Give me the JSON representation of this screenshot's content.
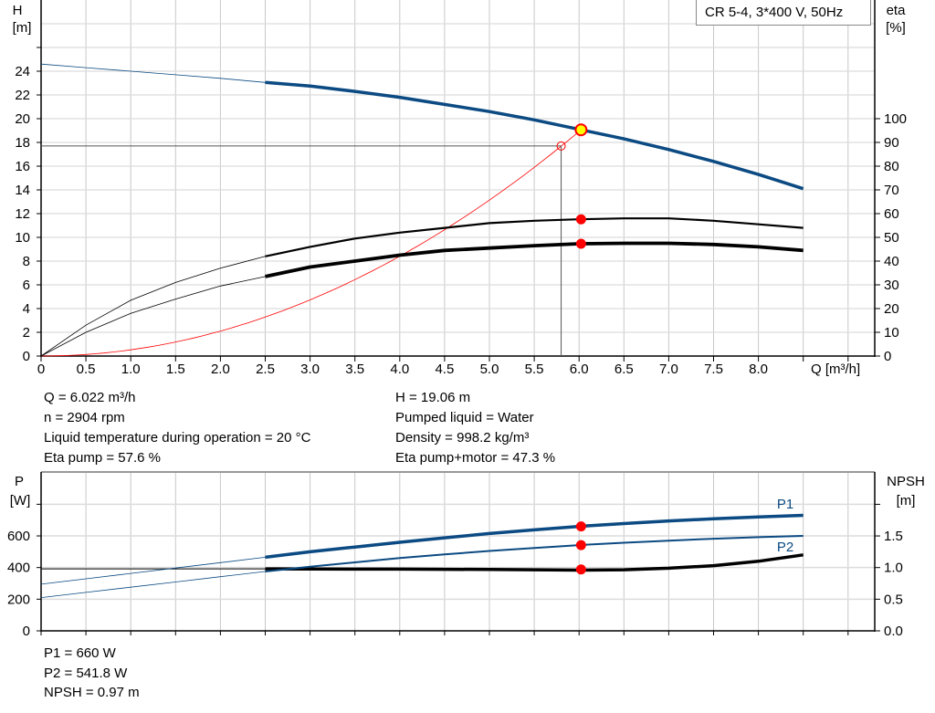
{
  "legend": "CR 5-4, 3*400 V, 50Hz",
  "colors": {
    "head": "#0b4a82",
    "efficiency": "#000000",
    "system": "#ff0000",
    "power": "#0b4a82",
    "npsh": "#000000",
    "marker": "#ff0000",
    "duty_point": "#ffff00",
    "grid": "#c8c8c8"
  },
  "info_top": {
    "left": [
      "Q = 6.022 m³/h",
      "n = 2904 rpm",
      "Liquid temperature during operation = 20 °C",
      "Eta pump = 57.6 %"
    ],
    "right": [
      "H = 19.06 m",
      "Pumped liquid = Water",
      "Density = 998.2 kg/m³",
      "Eta pump+motor = 47.3 %"
    ]
  },
  "info_bottom": [
    "P1 = 660 W",
    "P2 = 541.8 W",
    "NPSH = 0.97 m"
  ],
  "chart_data": [
    {
      "type": "line",
      "xlabel": "Q [m³/h]",
      "ylabel": "H\n[m]",
      "y2label": "eta\n[%]",
      "xlim": [
        0,
        9.3
      ],
      "ylim": [
        0,
        30
      ],
      "y2lim": [
        0,
        150
      ],
      "grid": true,
      "x_ticks": [
        "0",
        "0.5",
        "1.0",
        "1.5",
        "2.0",
        "2.5",
        "3.0",
        "3.5",
        "4.0",
        "4.5",
        "5.0",
        "5.5",
        "6.0",
        "6.5",
        "7.0",
        "7.5",
        "8.0"
      ],
      "y_ticks": [
        "0",
        "2",
        "4",
        "6",
        "8",
        "10",
        "12",
        "14",
        "16",
        "18",
        "20",
        "22",
        "24"
      ],
      "y2_ticks": [
        "0",
        "10",
        "20",
        "30",
        "40",
        "50",
        "60",
        "70",
        "80",
        "90",
        "100"
      ],
      "x": [
        0,
        0.5,
        1,
        1.5,
        2,
        2.5,
        3,
        3.5,
        4,
        4.5,
        5,
        5.5,
        6,
        6.5,
        7,
        7.5,
        8,
        8.5
      ],
      "series": [
        {
          "id": "head",
          "axis": "left",
          "values": [
            24.6,
            24.3,
            24.0,
            23.7,
            23.4,
            23.05,
            22.75,
            22.3,
            21.8,
            21.2,
            20.6,
            19.9,
            19.1,
            18.3,
            17.4,
            16.4,
            15.3,
            14.1
          ]
        },
        {
          "id": "eta_pump",
          "axis": "right",
          "values": [
            0,
            13,
            23.5,
            31,
            37,
            42,
            46,
            49.5,
            52,
            54,
            56,
            57,
            57.6,
            58,
            58,
            57,
            55.5,
            54
          ]
        },
        {
          "id": "eta_total",
          "axis": "right",
          "values": [
            0,
            10,
            18,
            24,
            29.5,
            33.5,
            37.5,
            40,
            42.5,
            44.5,
            45.5,
            46.5,
            47.3,
            47.5,
            47.5,
            47,
            46,
            44.5
          ]
        }
      ],
      "operating_range_start": 2.5,
      "system_curve": {
        "coefficient": 0.5256,
        "q_max": 6.022
      },
      "requested_point": {
        "q": 5.8,
        "h": 17.7
      },
      "duty_point": {
        "q": 6.022,
        "h": 19.06,
        "eta_pump": 57.6,
        "eta_total": 47.3
      }
    },
    {
      "type": "line",
      "ylabel": "P\n[W]",
      "y2label": "NPSH\n[m]",
      "xlim": [
        0,
        9.3
      ],
      "ylim": [
        0,
        1000
      ],
      "y2lim": [
        0,
        2.5
      ],
      "grid": true,
      "y_ticks": [
        "0",
        "200",
        "400",
        "600"
      ],
      "y2_ticks": [
        "0.0",
        "0.5",
        "1.0",
        "1.5"
      ],
      "x": [
        0,
        0.5,
        1,
        1.5,
        2,
        2.5,
        3,
        3.5,
        4,
        4.5,
        5,
        5.5,
        6,
        6.5,
        7,
        7.5,
        8,
        8.5
      ],
      "series": [
        {
          "id": "p1",
          "name": "P1",
          "axis": "left",
          "values": [
            295,
            329,
            363,
            397,
            431,
            465,
            500,
            530,
            560,
            588,
            615,
            638,
            660,
            678,
            695,
            708,
            720,
            730
          ]
        },
        {
          "id": "p2",
          "name": "P2",
          "axis": "left",
          "values": [
            210,
            243,
            276,
            309,
            342,
            375,
            405,
            433,
            460,
            483,
            505,
            524,
            542,
            557,
            570,
            582,
            592,
            600
          ]
        },
        {
          "id": "npsh",
          "axis": "right",
          "values": [
            0.98,
            0.98,
            0.98,
            0.98,
            0.98,
            0.98,
            0.978,
            0.976,
            0.975,
            0.972,
            0.97,
            0.965,
            0.96,
            0.965,
            0.99,
            1.03,
            1.1,
            1.2
          ]
        }
      ],
      "duty_point": {
        "q": 6.022,
        "p1": 660,
        "p2": 541.8,
        "npsh": 0.97
      }
    }
  ]
}
